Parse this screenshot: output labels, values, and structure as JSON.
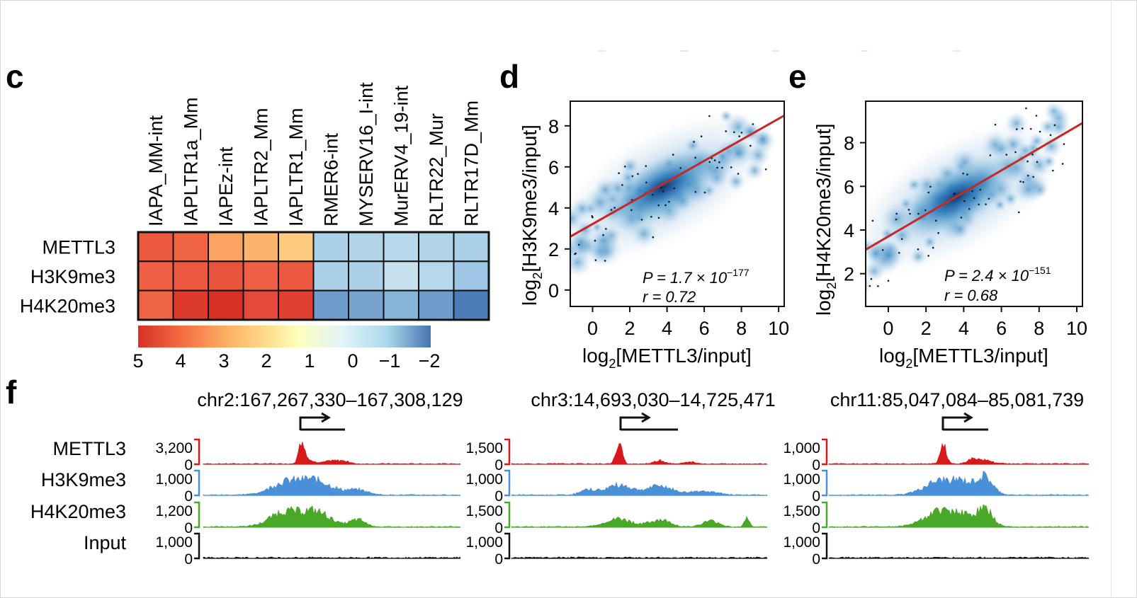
{
  "panels": {
    "c": "c",
    "d": "d",
    "e": "e",
    "f": "f"
  },
  "heatmap": {
    "columns": [
      "IAPA_MM-int",
      "IAPLTR1a_Mm",
      "IAPEz-int",
      "IAPLTR2_Mm",
      "IAPLTR1_Mm",
      "RMER6-int",
      "MYSERV16_I-int",
      "MurERV4_19-int",
      "RLTR22_Mur",
      "RLTR17D_Mm"
    ],
    "rows": [
      "METTL3",
      "H3K9me3",
      "H4K20me3"
    ],
    "values": [
      [
        4.2,
        4.0,
        3.1,
        2.8,
        2.3,
        -0.6,
        -0.5,
        -0.4,
        -0.5,
        -0.6
      ],
      [
        4.1,
        4.2,
        4.3,
        4.1,
        4.2,
        -0.6,
        -0.6,
        -0.1,
        -0.4,
        -0.9
      ],
      [
        4.0,
        4.8,
        5.0,
        4.5,
        4.7,
        -1.5,
        -1.4,
        -1.2,
        -1.5,
        -1.9
      ]
    ],
    "colorbar_ticks": [
      "5",
      "4",
      "3",
      "2",
      "1",
      "0",
      "−1",
      "−2"
    ],
    "colors": {
      "high": "#d73027",
      "mid": "#ffffbf",
      "low": "#4575b4"
    }
  },
  "scatter_d": {
    "ylabel_pre": "log",
    "ylabel_sub": "2",
    "ylabel_post": "[H3K9me3/input]",
    "xlabel_pre": "log",
    "xlabel_sub": "2",
    "xlabel_post": "[METTL3/input]",
    "xticks": [
      "0",
      "2",
      "4",
      "6",
      "8",
      "10"
    ],
    "yticks": [
      "0",
      "2",
      "4",
      "6",
      "8"
    ],
    "p_label": "P = 1.7 × 10",
    "p_exp": "−177",
    "r_label": "r = 0.72"
  },
  "scatter_e": {
    "ylabel_pre": "log",
    "ylabel_sub": "2",
    "ylabel_post": "[H4K20me3/input]",
    "xlabel_pre": "log",
    "xlabel_sub": "2",
    "xlabel_post": "[METTL3/input]",
    "xticks": [
      "0",
      "2",
      "4",
      "6",
      "8",
      "10"
    ],
    "yticks": [
      "2",
      "4",
      "6",
      "8"
    ],
    "p_label": "P = 2.4 × 10",
    "p_exp": "−151",
    "r_label": "r = 0.68"
  },
  "tracks": {
    "labels": [
      "METTL3",
      "H3K9me3",
      "H4K20me3",
      "Input"
    ],
    "colors": [
      "#d7191c",
      "#4a90d9",
      "#4aa829",
      "#111111"
    ],
    "regions": [
      {
        "title": "chr2:167,267,330–167,308,129",
        "scales": [
          "3,200",
          "1,000",
          "1,200",
          "1,000"
        ]
      },
      {
        "title": "chr3:14,693,030–14,725,471",
        "scales": [
          "1,500",
          "1,000",
          "1,500",
          "1,000"
        ]
      },
      {
        "title": "chr11:85,047,084–85,081,739",
        "scales": [
          "1,000",
          "1,000",
          "1,500",
          "1,000"
        ]
      }
    ],
    "zero": "0"
  },
  "chart_data": [
    {
      "type": "heatmap",
      "x": [
        "IAPA_MM-int",
        "IAPLTR1a_Mm",
        "IAPEz-int",
        "IAPLTR2_Mm",
        "IAPLTR1_Mm",
        "RMER6-int",
        "MYSERV16_I-int",
        "MurERV4_19-int",
        "RLTR22_Mur",
        "RLTR17D_Mm"
      ],
      "y": [
        "METTL3",
        "H3K9me3",
        "H4K20me3"
      ],
      "values": [
        [
          4.2,
          4.0,
          3.1,
          2.8,
          2.3,
          -0.6,
          -0.5,
          -0.4,
          -0.5,
          -0.6
        ],
        [
          4.1,
          4.2,
          4.3,
          4.1,
          4.2,
          -0.6,
          -0.6,
          -0.1,
          -0.4,
          -0.9
        ],
        [
          4.0,
          4.8,
          5.0,
          4.5,
          4.7,
          -1.5,
          -1.4,
          -1.2,
          -1.5,
          -1.9
        ]
      ],
      "colorbar_range": [
        5,
        -2
      ]
    },
    {
      "type": "scatter",
      "xlabel": "log2[METTL3/input]",
      "ylabel": "log2[H3K9me3/input]",
      "xlim": [
        -1.2,
        10.3
      ],
      "ylim": [
        -0.8,
        9.2
      ],
      "fit_line": {
        "x": [
          -1.2,
          10.3
        ],
        "y": [
          2.6,
          8.5
        ]
      },
      "annotations": [
        "P = 1.7 × 10−177",
        "r = 0.72"
      ],
      "density_center": [
        3.8,
        5.0
      ]
    },
    {
      "type": "scatter",
      "xlabel": "log2[METTL3/input]",
      "ylabel": "log2[H4K20me3/input]",
      "xlim": [
        -1.2,
        10.3
      ],
      "ylim": [
        0.5,
        9.9
      ],
      "fit_line": {
        "x": [
          -1.2,
          10.3
        ],
        "y": [
          3.1,
          8.9
        ]
      },
      "annotations": [
        "P = 2.4 × 10−151",
        "r = 0.68"
      ],
      "density_center": [
        3.6,
        5.5
      ]
    }
  ]
}
